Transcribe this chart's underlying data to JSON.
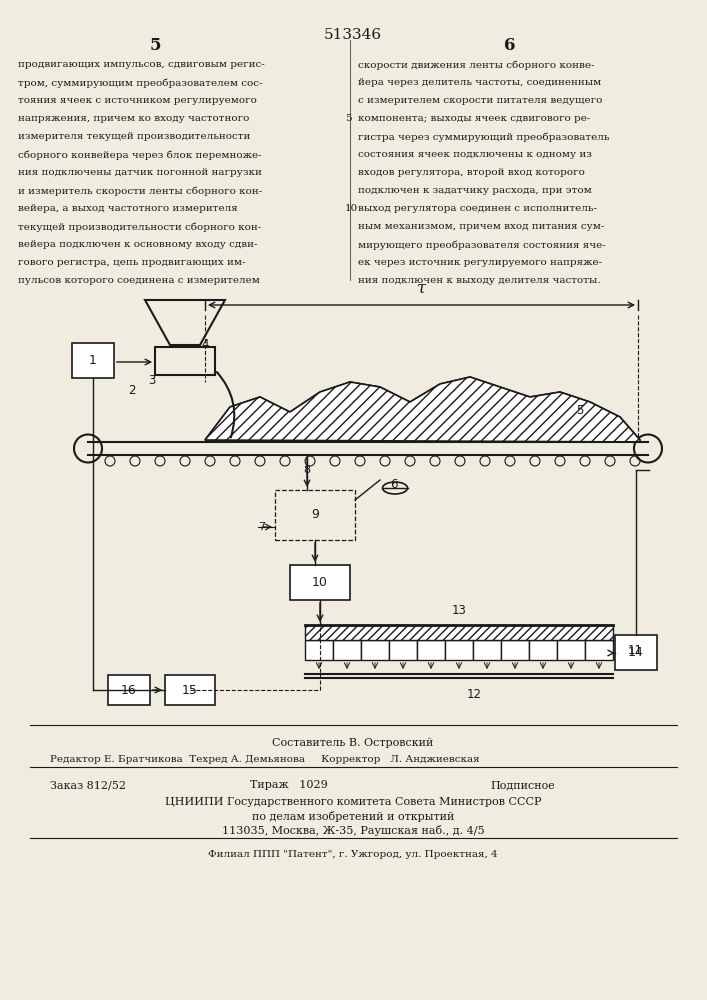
{
  "page_title": "513346",
  "col_left": "5",
  "col_right": "6",
  "text_left": "продвигающих импульсов, сдвиговым регис-\nтром, суммирующим преобразователем сос-\nтояния ячеек с источником регулируемого\nнапряжения, причем ко входу частотного\nизмерителя текущей производительности\nсборного конвейера через блок перемноже-\nния подключены датчик погонной нагрузки\nи измеритель скорости ленты сборного кон-\nвейера, а выход частотного измерителя\nтекущей производительности сборного кон-\nвейера подключен к основному входу сдви-\nгового регистра, цепь продвигающих им-\nпульсов которого соединена с измерителем",
  "text_right": "скорости движения ленты сборного конве-\nйера через делитель частоты, соединенным\nс измерителем скорости питателя ведущего\nкомпонента; выходы ячеек сдвигового ре-\nгистра через суммирующий преобразователь\nсостояния ячеек подключены к одному из\nвходов регулятора, второй вход которого\nподключен к задатчику расхода, при этом\nвыход регулятора соединен с исполнитель-\nным механизмом, причем вход питания сум-\nмирующего преобразователя состояния яче-\nек через источник регулируемого напряже-\nния подключен к выходу делителя частоты.",
  "footer_composer": "Составитель В. Островский",
  "footer_editor": "Редактор Е. Братчикова  Техред А. Демьянова     Корректор   Л. Анджиевская",
  "footer_order": "Заказ 812/52",
  "footer_tirazh": "Тираж   1029",
  "footer_podp": "Подписное",
  "footer_org1": "ЦНИИПИ Государственного комитета Совета Министров СССР",
  "footer_org2": "по делам изобретений и открытий",
  "footer_addr": "113035, Москва, Ж-35, Раушская наб., д. 4/5",
  "footer_filial": "Филиал ППП \"Патент\", г. Ужгород, ул. Проектная, 4",
  "bg_color": "#f0ece0",
  "text_color": "#1a1a1a"
}
